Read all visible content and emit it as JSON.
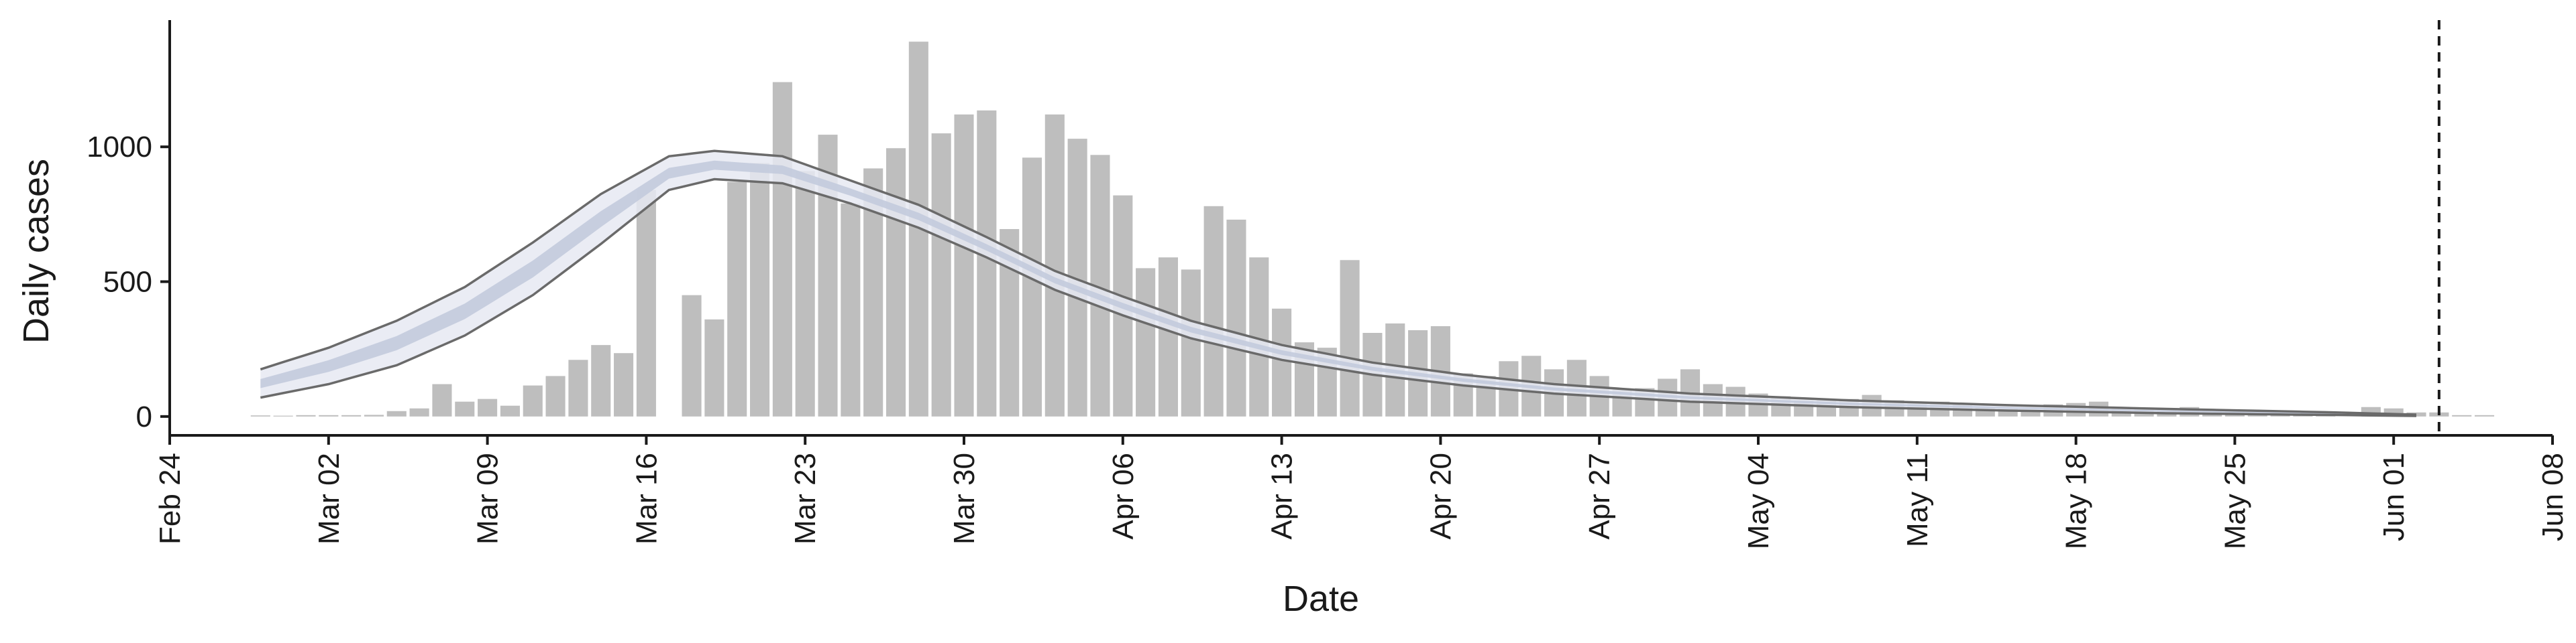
{
  "chart_data": {
    "type": "bar",
    "xlabel": "Date",
    "ylabel": "Daily cases",
    "ylim": [
      -70,
      1470
    ],
    "yticks": [
      0,
      500,
      1000
    ],
    "x_range": [
      "2020-02-24",
      "2020-06-08"
    ],
    "x_ticks": [
      "2020-02-24",
      "2020-03-02",
      "2020-03-09",
      "2020-03-16",
      "2020-03-23",
      "2020-03-30",
      "2020-04-06",
      "2020-04-13",
      "2020-04-20",
      "2020-04-27",
      "2020-05-04",
      "2020-05-11",
      "2020-05-18",
      "2020-05-25",
      "2020-06-01",
      "2020-06-08"
    ],
    "x_tick_labels": [
      "Feb 24",
      "Mar 02",
      "Mar 09",
      "Mar 16",
      "Mar 23",
      "Mar 30",
      "Apr 06",
      "Apr 13",
      "Apr 20",
      "Apr 27",
      "May 04",
      "May 11",
      "May 18",
      "May 25",
      "Jun 01",
      "Jun 08"
    ],
    "dashed_line_date": "2020-06-03",
    "grid": false,
    "colors": {
      "bars": "#bebebe",
      "band_outer": "#e6e9f2",
      "band_inner": "#c3cbdd",
      "band_line": "#6a6a6a",
      "axis": "#1a1a1a"
    },
    "bars": {
      "start_date": "2020-02-28",
      "values": [
        4,
        3,
        5,
        5,
        5,
        6,
        20,
        30,
        120,
        55,
        65,
        40,
        115,
        150,
        210,
        265,
        235,
        840,
        0,
        450,
        360,
        870,
        940,
        1240,
        910,
        1045,
        790,
        920,
        995,
        1390,
        1050,
        1120,
        1135,
        695,
        960,
        1120,
        1030,
        970,
        820,
        550,
        590,
        545,
        780,
        730,
        590,
        400,
        275,
        255,
        580,
        310,
        345,
        320,
        335,
        160,
        150,
        205,
        225,
        175,
        210,
        150,
        100,
        105,
        140,
        175,
        120,
        110,
        85,
        75,
        60,
        60,
        65,
        80,
        60,
        50,
        55,
        45,
        35,
        30,
        25,
        45,
        50,
        55,
        30,
        30,
        25,
        35,
        25,
        20,
        10,
        10,
        10,
        15,
        0,
        35,
        30,
        15,
        15,
        5,
        5
      ]
    },
    "band": {
      "start_date": "2020-02-28",
      "end_date": "2020-06-02",
      "keys": [
        {
          "date": "2020-02-28",
          "lo": 70,
          "mid": 122,
          "hi": 175
        },
        {
          "date": "2020-03-02",
          "lo": 120,
          "mid": 187,
          "hi": 255
        },
        {
          "date": "2020-03-05",
          "lo": 190,
          "mid": 272,
          "hi": 355
        },
        {
          "date": "2020-03-08",
          "lo": 300,
          "mid": 390,
          "hi": 480
        },
        {
          "date": "2020-03-11",
          "lo": 450,
          "mid": 547,
          "hi": 645
        },
        {
          "date": "2020-03-14",
          "lo": 640,
          "mid": 732,
          "hi": 825
        },
        {
          "date": "2020-03-17",
          "lo": 840,
          "mid": 902,
          "hi": 965
        },
        {
          "date": "2020-03-19",
          "lo": 880,
          "mid": 932,
          "hi": 985
        },
        {
          "date": "2020-03-22",
          "lo": 865,
          "mid": 915,
          "hi": 965
        },
        {
          "date": "2020-03-25",
          "lo": 790,
          "mid": 832,
          "hi": 875
        },
        {
          "date": "2020-03-28",
          "lo": 700,
          "mid": 742,
          "hi": 785
        },
        {
          "date": "2020-03-31",
          "lo": 590,
          "mid": 627,
          "hi": 665
        },
        {
          "date": "2020-04-03",
          "lo": 470,
          "mid": 505,
          "hi": 540
        },
        {
          "date": "2020-04-06",
          "lo": 375,
          "mid": 410,
          "hi": 445
        },
        {
          "date": "2020-04-09",
          "lo": 290,
          "mid": 322,
          "hi": 355
        },
        {
          "date": "2020-04-13",
          "lo": 210,
          "mid": 237,
          "hi": 265
        },
        {
          "date": "2020-04-17",
          "lo": 155,
          "mid": 177,
          "hi": 200
        },
        {
          "date": "2020-04-21",
          "lo": 115,
          "mid": 135,
          "hi": 155
        },
        {
          "date": "2020-04-25",
          "lo": 85,
          "mid": 102,
          "hi": 120
        },
        {
          "date": "2020-05-01",
          "lo": 55,
          "mid": 70,
          "hi": 85
        },
        {
          "date": "2020-05-08",
          "lo": 35,
          "mid": 47,
          "hi": 60
        },
        {
          "date": "2020-05-15",
          "lo": 22,
          "mid": 32,
          "hi": 42
        },
        {
          "date": "2020-05-22",
          "lo": 12,
          "mid": 20,
          "hi": 28
        },
        {
          "date": "2020-05-29",
          "lo": 6,
          "mid": 11,
          "hi": 16
        },
        {
          "date": "2020-06-02",
          "lo": 2,
          "mid": 4,
          "hi": 7
        }
      ]
    }
  }
}
